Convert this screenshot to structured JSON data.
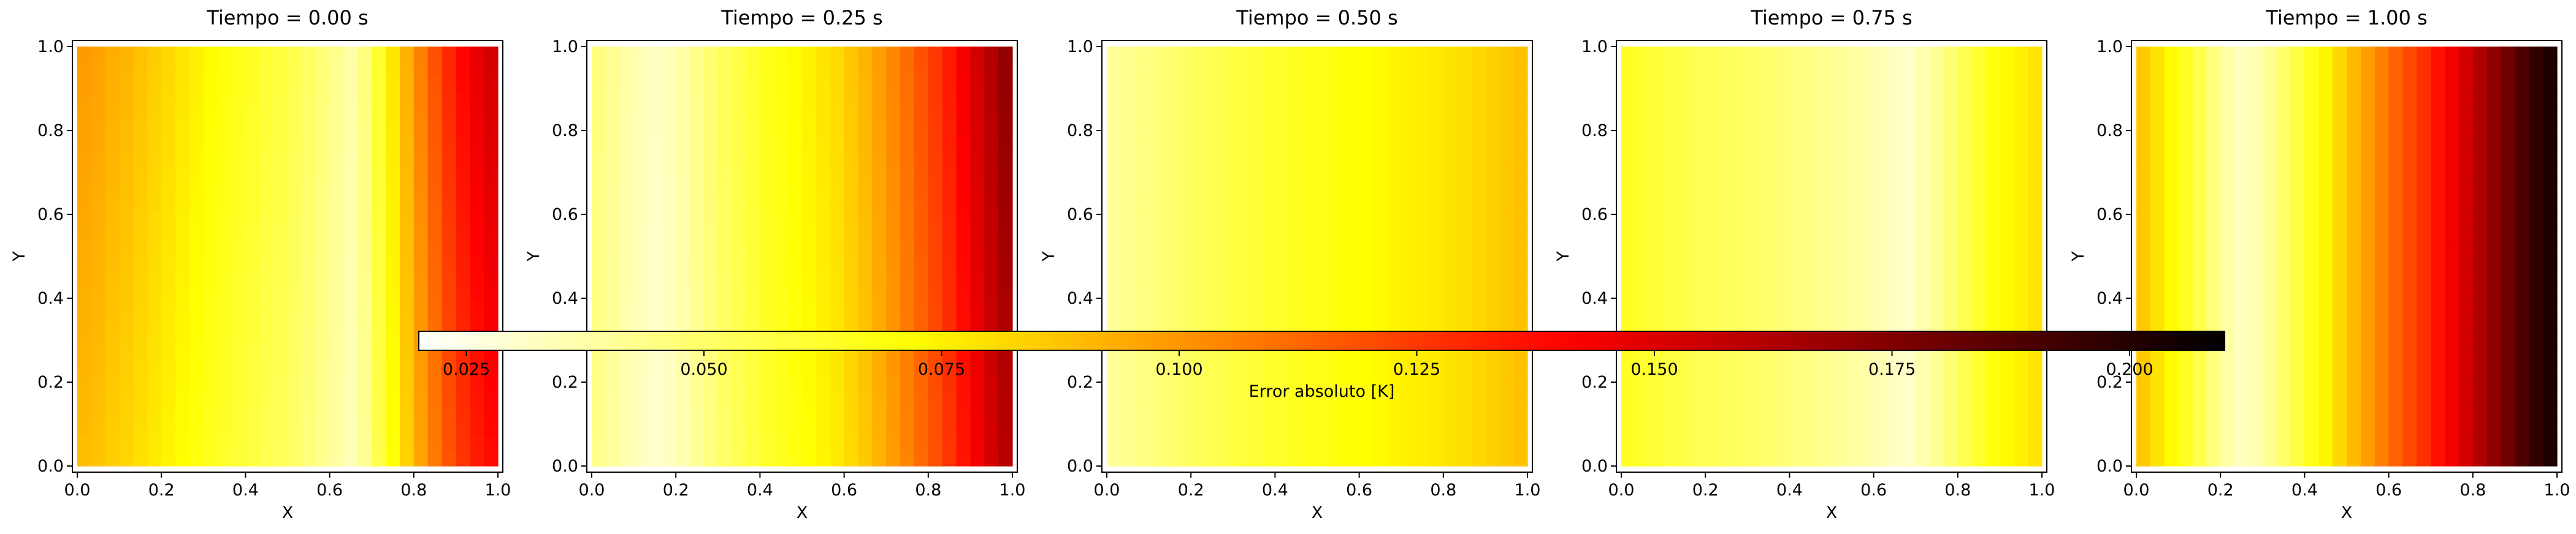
{
  "chart_data": {
    "type": "heatmap",
    "colormap": "hot_r",
    "grid": false,
    "x_range": [
      0,
      1
    ],
    "y_range": [
      0,
      1
    ],
    "x_ticks": [
      "0.0",
      "0.2",
      "0.4",
      "0.6",
      "0.8",
      "1.0"
    ],
    "y_ticks": [
      "0.0",
      "0.2",
      "0.4",
      "0.6",
      "0.8",
      "1.0"
    ],
    "xlabel": "X",
    "ylabel": "Y",
    "panels": [
      {
        "title": "Tiempo = 0.00 s",
        "error_by_x": [
          0.094,
          0.092,
          0.089,
          0.087,
          0.084,
          0.081,
          0.078,
          0.075,
          0.072,
          0.069,
          0.066,
          0.063,
          0.061,
          0.058,
          0.056,
          0.053,
          0.049,
          0.045,
          0.041,
          0.036,
          0.044,
          0.059,
          0.074,
          0.088,
          0.101,
          0.113,
          0.124,
          0.133,
          0.14,
          0.145
        ],
        "tilt": 0.05
      },
      {
        "title": "Tiempo = 0.25 s",
        "error_by_x": [
          0.045,
          0.041,
          0.037,
          0.034,
          0.031,
          0.033,
          0.037,
          0.042,
          0.047,
          0.052,
          0.056,
          0.06,
          0.064,
          0.067,
          0.07,
          0.073,
          0.076,
          0.079,
          0.084,
          0.089,
          0.095,
          0.101,
          0.108,
          0.115,
          0.122,
          0.13,
          0.139,
          0.148,
          0.157,
          0.165
        ],
        "tilt": 0.03
      },
      {
        "title": "Tiempo = 0.50 s",
        "error_by_x": [
          0.041,
          0.043,
          0.045,
          0.047,
          0.049,
          0.051,
          0.053,
          0.055,
          0.057,
          0.059,
          0.06,
          0.062,
          0.063,
          0.065,
          0.066,
          0.067,
          0.069,
          0.07,
          0.071,
          0.072,
          0.074,
          0.075,
          0.076,
          0.077,
          0.079,
          0.08,
          0.082,
          0.084,
          0.086,
          0.088
        ],
        "tilt": 0.0
      },
      {
        "title": "Tiempo = 0.75 s",
        "error_by_x": [
          0.064,
          0.062,
          0.06,
          0.058,
          0.057,
          0.055,
          0.054,
          0.053,
          0.052,
          0.051,
          0.049,
          0.048,
          0.046,
          0.045,
          0.043,
          0.041,
          0.039,
          0.037,
          0.035,
          0.032,
          0.031,
          0.036,
          0.041,
          0.048,
          0.055,
          0.062,
          0.068,
          0.072,
          0.075,
          0.078
        ],
        "tilt": 0.0
      },
      {
        "title": "Tiempo = 1.00 s",
        "error_by_x": [
          0.086,
          0.079,
          0.072,
          0.064,
          0.056,
          0.047,
          0.038,
          0.033,
          0.036,
          0.042,
          0.05,
          0.058,
          0.066,
          0.074,
          0.082,
          0.09,
          0.098,
          0.106,
          0.114,
          0.121,
          0.128,
          0.136,
          0.144,
          0.153,
          0.162,
          0.171,
          0.18,
          0.189,
          0.196,
          0.202
        ],
        "tilt": 0.0
      }
    ],
    "colorbar": {
      "label": "Error absoluto [K]",
      "orientation": "horizontal",
      "range": [
        0.02,
        0.21
      ],
      "ticks": [
        0.025,
        0.05,
        0.075,
        0.1,
        0.125,
        0.15,
        0.175,
        0.2
      ],
      "tick_labels": [
        "0.025",
        "0.050",
        "0.075",
        "0.100",
        "0.125",
        "0.150",
        "0.175",
        "0.200"
      ]
    }
  }
}
